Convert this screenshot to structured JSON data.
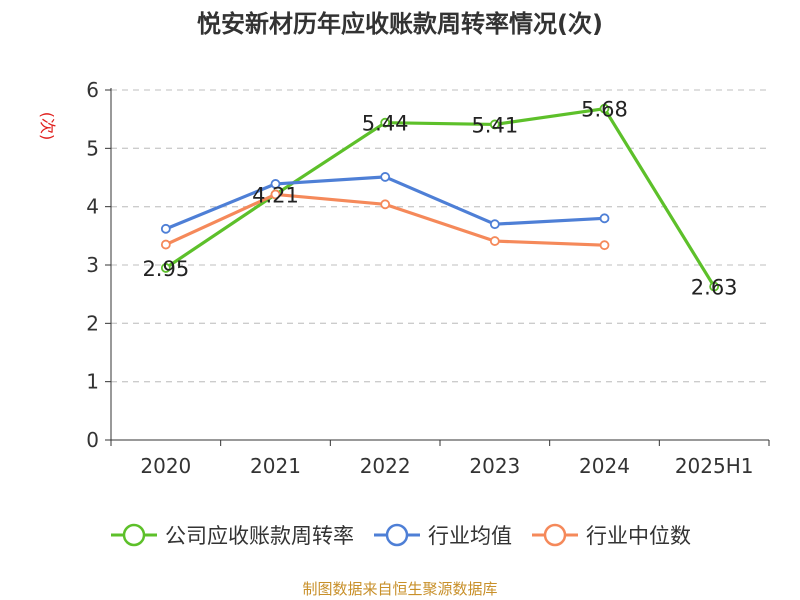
{
  "chart_data": {
    "type": "line",
    "title": "悦安新材历年应收账款周转率情况(次)",
    "ylabel": "(次)",
    "categories": [
      "2020",
      "2021",
      "2022",
      "2023",
      "2024",
      "2025H1"
    ],
    "ylim": [
      0,
      6
    ],
    "yticks": [
      0,
      1,
      2,
      3,
      4,
      5,
      6
    ],
    "grid": true,
    "legend_position": "bottom",
    "series": [
      {
        "name": "公司应收账款周转率",
        "color": "#5dc02a",
        "values": [
          2.95,
          4.21,
          5.44,
          5.41,
          5.68,
          2.63
        ],
        "labels": [
          "2.95",
          "4.21",
          "5.44",
          "5.41",
          "5.68",
          "2.63"
        ]
      },
      {
        "name": "行业均值",
        "color": "#4e7fd6",
        "values": [
          3.62,
          4.39,
          4.51,
          3.7,
          3.8,
          null
        ]
      },
      {
        "name": "行业中位数",
        "color": "#f5895a",
        "values": [
          3.35,
          4.21,
          4.04,
          3.41,
          3.34,
          null
        ]
      }
    ]
  },
  "source_note": "制图数据来自恒生聚源数据库"
}
